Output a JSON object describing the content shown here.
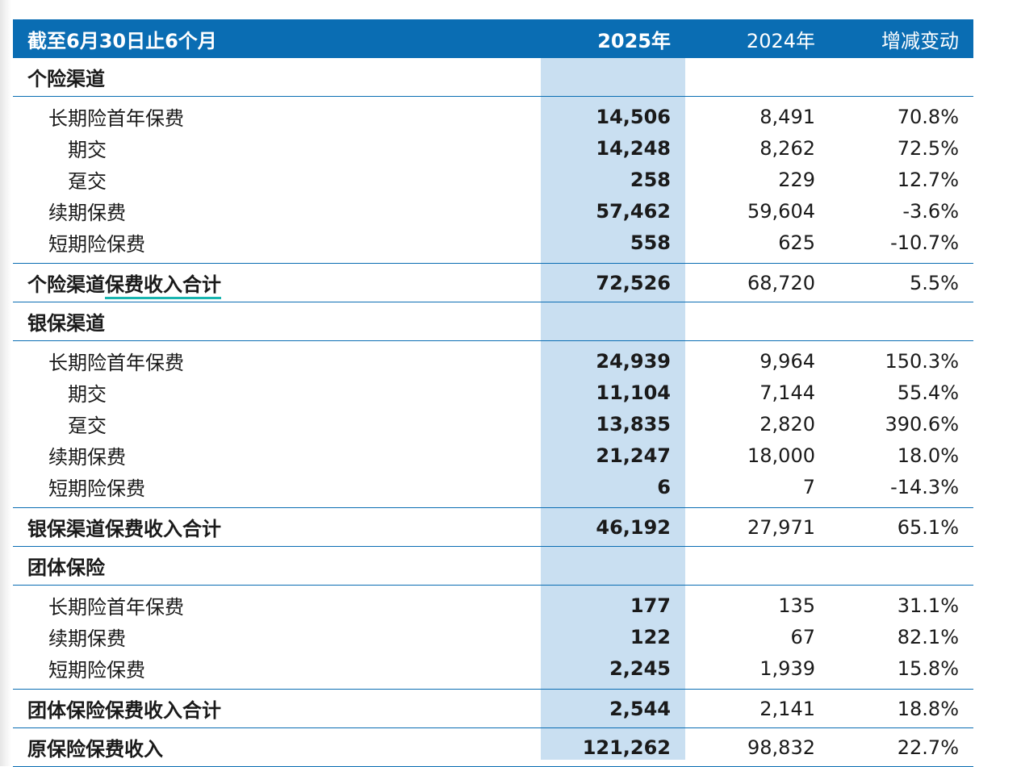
{
  "header": {
    "period": "截至6月30日止6个月",
    "col_2025": "2025年",
    "col_2024": "2024年",
    "col_change": "增减变动"
  },
  "sections": [
    {
      "title": "个险渠道",
      "rows": [
        {
          "label": "长期险首年保费",
          "v2025": "14,506",
          "v2024": "8,491",
          "change": "70.8%"
        },
        {
          "label": "期交",
          "v2025": "14,248",
          "v2024": "8,262",
          "change": "72.5%"
        },
        {
          "label": "趸交",
          "v2025": "258",
          "v2024": "229",
          "change": "12.7%"
        },
        {
          "label": "续期保费",
          "v2025": "57,462",
          "v2024": "59,604",
          "change": "-3.6%"
        },
        {
          "label": "短期险保费",
          "v2025": "558",
          "v2024": "625",
          "change": "-10.7%"
        }
      ],
      "subtotal": {
        "label_a": "个险渠道",
        "label_b": "保费收入合计",
        "v2025": "72,526",
        "v2024": "68,720",
        "change": "5.5%"
      }
    },
    {
      "title": "银保渠道",
      "rows": [
        {
          "label": "长期险首年保费",
          "v2025": "24,939",
          "v2024": "9,964",
          "change": "150.3%"
        },
        {
          "label": "期交",
          "v2025": "11,104",
          "v2024": "7,144",
          "change": "55.4%"
        },
        {
          "label": "趸交",
          "v2025": "13,835",
          "v2024": "2,820",
          "change": "390.6%"
        },
        {
          "label": "续期保费",
          "v2025": "21,247",
          "v2024": "18,000",
          "change": "18.0%"
        },
        {
          "label": "短期险保费",
          "v2025": "6",
          "v2024": "7",
          "change": "-14.3%"
        }
      ],
      "subtotal": {
        "label": "银保渠道保费收入合计",
        "v2025": "46,192",
        "v2024": "27,971",
        "change": "65.1%"
      }
    },
    {
      "title": "团体保险",
      "rows": [
        {
          "label": "长期险首年保费",
          "v2025": "177",
          "v2024": "135",
          "change": "31.1%"
        },
        {
          "label": "续期保费",
          "v2025": "122",
          "v2024": "67",
          "change": "82.1%"
        },
        {
          "label": "短期险保费",
          "v2025": "2,245",
          "v2024": "1,939",
          "change": "15.8%"
        }
      ],
      "subtotal": {
        "label": "团体保险保费收入合计",
        "v2025": "2,544",
        "v2024": "2,141",
        "change": "18.8%"
      }
    }
  ],
  "grand_total": {
    "label": "原保险保费收入",
    "v2025": "121,262",
    "v2024": "98,832",
    "change": "22.7%"
  },
  "colors": {
    "header_bg": "#0a6db3",
    "highlight_col": "#c9dff1",
    "rule": "#0a6db3",
    "underline_accent": "#19b5b0"
  }
}
